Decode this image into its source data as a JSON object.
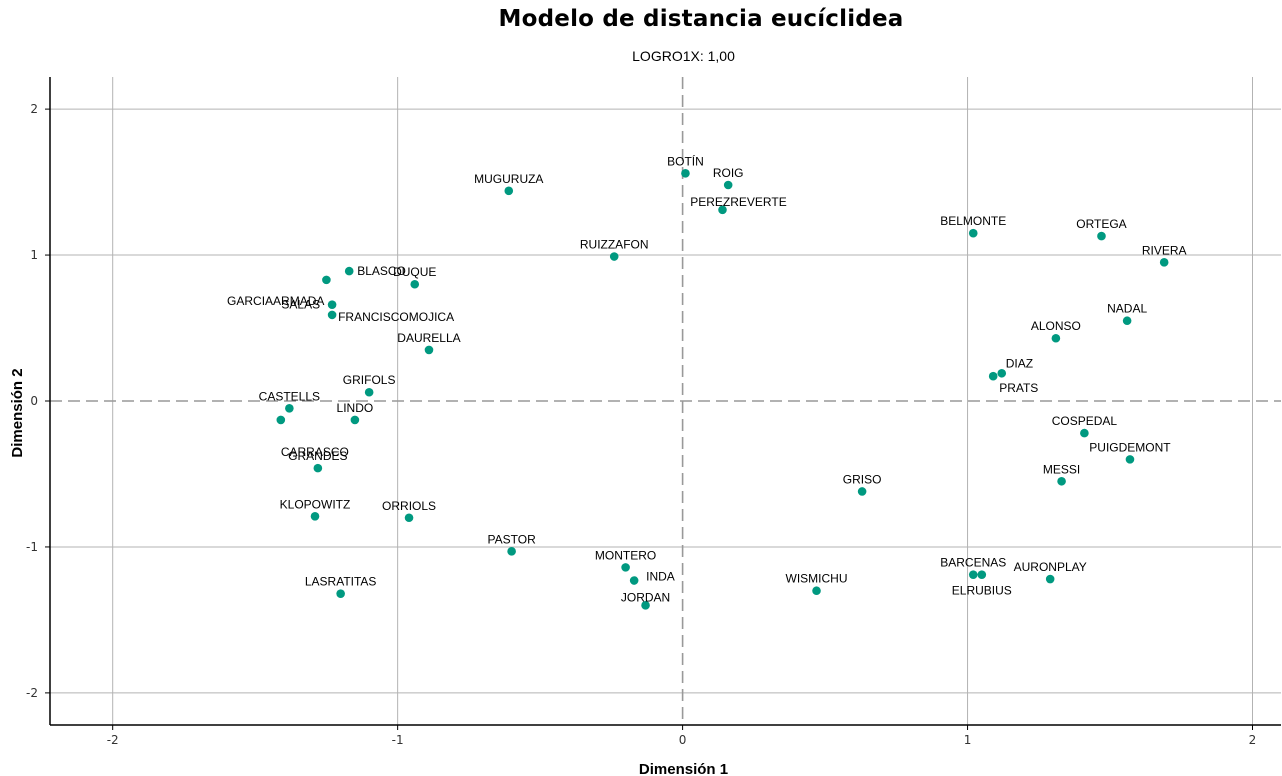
{
  "chart_data": {
    "type": "scatter",
    "title": "Modelo de distancia eucíclidea",
    "subtitle": "LOGRO1X: 1,00",
    "xlabel": "Dimensión 1",
    "ylabel": "Dimensión 2",
    "xlim": [
      -2.22,
      2.1
    ],
    "ylim": [
      -2.22,
      2.22
    ],
    "xticks": [
      -2,
      -1,
      0,
      1,
      2
    ],
    "yticks": [
      -2,
      -1,
      0,
      1,
      2
    ],
    "xtick_labels": [
      "-2",
      "-1",
      "0",
      "1",
      "2"
    ],
    "ytick_labels": [
      "-2",
      "-1",
      "0",
      "1",
      "2"
    ],
    "grid": true,
    "reference_lines": {
      "x": 0,
      "y": 0,
      "style": "dashed"
    },
    "marker_color": "#009980",
    "points": [
      {
        "label": "BOTÍN",
        "x": 0.01,
        "y": 1.56
      },
      {
        "label": "ROIG",
        "x": 0.16,
        "y": 1.48
      },
      {
        "label": "PEREZREVERTE",
        "x": 0.14,
        "y": 1.31
      },
      {
        "label": "MUGURUZA",
        "x": -0.61,
        "y": 1.44
      },
      {
        "label": "RUIZZAFON",
        "x": -0.24,
        "y": 0.99
      },
      {
        "label": "BELMONTE",
        "x": 1.02,
        "y": 1.15
      },
      {
        "label": "ORTEGA",
        "x": 1.47,
        "y": 1.13
      },
      {
        "label": "RIVERA",
        "x": 1.69,
        "y": 0.95
      },
      {
        "label": "NADAL",
        "x": 1.56,
        "y": 0.55
      },
      {
        "label": "ALONSO",
        "x": 1.31,
        "y": 0.43
      },
      {
        "label": "DIAZ",
        "x": 1.12,
        "y": 0.19
      },
      {
        "label": "PRATS",
        "x": 1.09,
        "y": 0.17
      },
      {
        "label": "BLASCO",
        "x": -1.17,
        "y": 0.89
      },
      {
        "label": "DUQUE",
        "x": -0.94,
        "y": 0.8
      },
      {
        "label": "GARCIAARMADA",
        "x": -1.25,
        "y": 0.83
      },
      {
        "label": "SALAS",
        "x": -1.23,
        "y": 0.66
      },
      {
        "label": "FRANCISCOMOJICA",
        "x": -1.23,
        "y": 0.59
      },
      {
        "label": "DAURELLA",
        "x": -0.89,
        "y": 0.35
      },
      {
        "label": "GRIFOLS",
        "x": -1.1,
        "y": 0.06
      },
      {
        "label": "CASTELLS",
        "x": -1.38,
        "y": -0.05
      },
      {
        "label": "CARRASCO",
        "x": -1.41,
        "y": -0.13
      },
      {
        "label": "LINDO",
        "x": -1.15,
        "y": -0.13
      },
      {
        "label": "GRANDES",
        "x": -1.28,
        "y": -0.46
      },
      {
        "label": "KLOPOWITZ",
        "x": -1.29,
        "y": -0.79
      },
      {
        "label": "ORRIOLS",
        "x": -0.96,
        "y": -0.8
      },
      {
        "label": "LASRATITAS",
        "x": -1.2,
        "y": -1.32
      },
      {
        "label": "PASTOR",
        "x": -0.6,
        "y": -1.03
      },
      {
        "label": "MONTERO",
        "x": -0.2,
        "y": -1.14
      },
      {
        "label": "INDA",
        "x": -0.17,
        "y": -1.23
      },
      {
        "label": "JORDAN",
        "x": -0.13,
        "y": -1.4
      },
      {
        "label": "WISMICHU",
        "x": 0.47,
        "y": -1.3
      },
      {
        "label": "GRISO",
        "x": 0.63,
        "y": -0.62
      },
      {
        "label": "COSPEDAL",
        "x": 1.41,
        "y": -0.22
      },
      {
        "label": "PUIGDEMONT",
        "x": 1.57,
        "y": -0.4
      },
      {
        "label": "MESSI",
        "x": 1.33,
        "y": -0.55
      },
      {
        "label": "BARCENAS",
        "x": 1.02,
        "y": -1.19
      },
      {
        "label": "ELRUBIUS",
        "x": 1.05,
        "y": -1.19
      },
      {
        "label": "AURONPLAY",
        "x": 1.29,
        "y": -1.22
      }
    ]
  }
}
